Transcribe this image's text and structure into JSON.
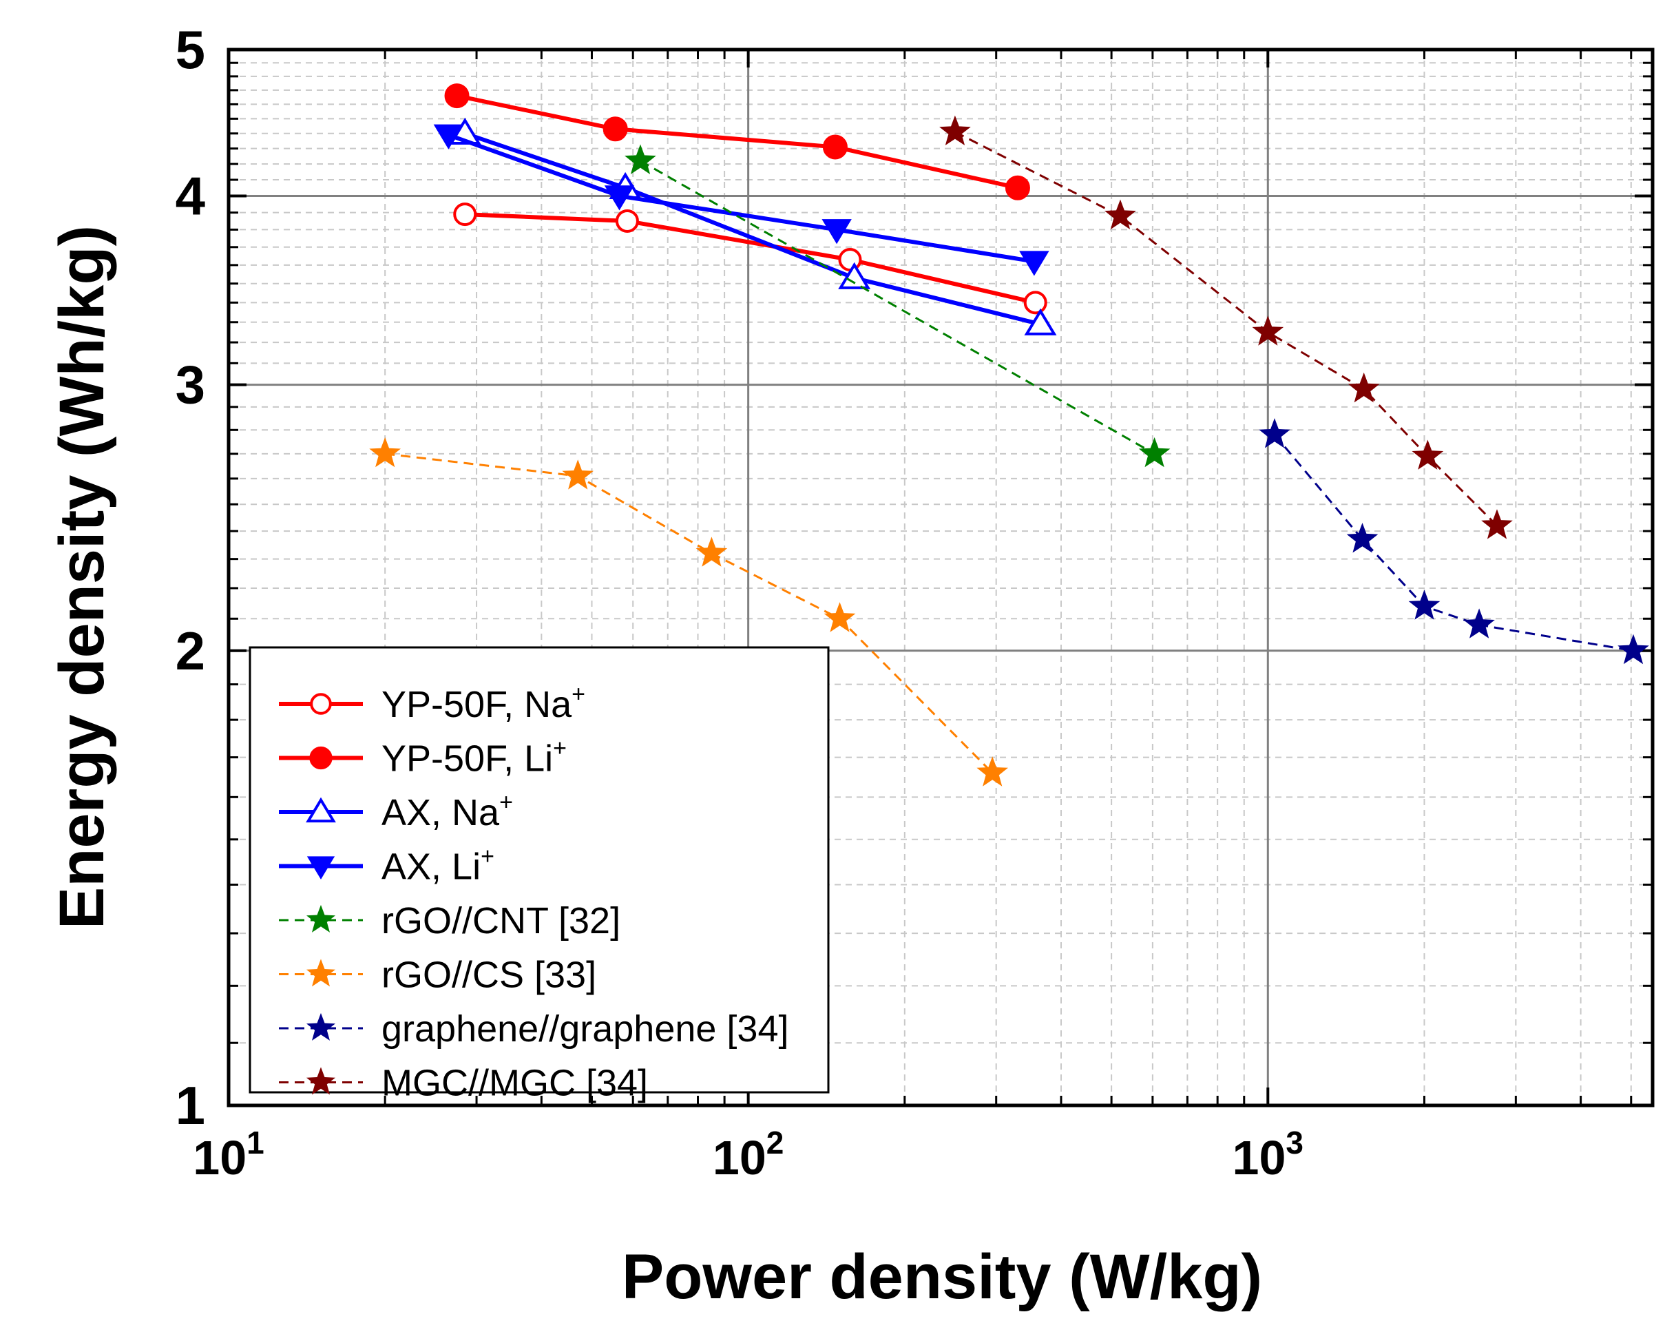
{
  "chart_data": {
    "type": "line",
    "title": "",
    "xlabel": "Power density (W/kg)",
    "ylabel": "Energy density (Wh/kg)",
    "xscale": "log",
    "yscale": "log",
    "xlim": [
      10,
      5500
    ],
    "ylim": [
      1,
      5
    ],
    "grid": true,
    "x_ticks": [
      {
        "base": "10",
        "exp": "1",
        "value": 10
      },
      {
        "base": "10",
        "exp": "2",
        "value": 100
      },
      {
        "base": "10",
        "exp": "3",
        "value": 1000
      }
    ],
    "y_ticks": [
      {
        "label": "1",
        "value": 1
      },
      {
        "label": "2",
        "value": 2
      },
      {
        "label": "3",
        "value": 3
      },
      {
        "label": "4",
        "value": 4
      },
      {
        "label": "5",
        "value": 5
      }
    ],
    "legend_position": "bottom-left",
    "series": [
      {
        "name": "YP-50F, Na",
        "sup": "+",
        "color": "#ff0000",
        "marker": "circle-open",
        "dash": "solid",
        "x": [
          28.5,
          58.5,
          157,
          357
        ],
        "y": [
          3.89,
          3.85,
          3.63,
          3.4
        ]
      },
      {
        "name": "YP-50F, Li",
        "sup": "+",
        "color": "#ff0000",
        "marker": "circle-filled",
        "dash": "solid",
        "x": [
          27.5,
          55.5,
          147,
          330
        ],
        "y": [
          4.66,
          4.43,
          4.31,
          4.05
        ]
      },
      {
        "name": "AX, Na",
        "sup": "+",
        "color": "#0000ff",
        "marker": "triangle-up-open",
        "dash": "solid",
        "x": [
          28.5,
          58,
          160,
          365
        ],
        "y": [
          4.4,
          4.05,
          3.53,
          3.29
        ]
      },
      {
        "name": "AX, Li",
        "sup": "+",
        "color": "#0000ff",
        "marker": "triangle-down-filled",
        "dash": "solid",
        "x": [
          26.5,
          56.5,
          148,
          355
        ],
        "y": [
          4.39,
          4.0,
          3.8,
          3.62
        ]
      },
      {
        "name": "rGO//CNT [32]",
        "sup": "",
        "color": "#008000",
        "marker": "star",
        "dash": "dashed",
        "x": [
          62,
          605
        ],
        "y": [
          4.22,
          2.7
        ]
      },
      {
        "name": "rGO//CS [33]",
        "sup": "",
        "color": "#ff8000",
        "marker": "star",
        "dash": "dashed",
        "x": [
          20,
          47,
          85,
          150,
          295
        ],
        "y": [
          2.7,
          2.61,
          2.32,
          2.1,
          1.66
        ]
      },
      {
        "name": "graphene//graphene [34]",
        "sup": "",
        "color": "#00008b",
        "marker": "star",
        "dash": "dashed",
        "x": [
          1030,
          1520,
          2000,
          2550,
          5050
        ],
        "y": [
          2.78,
          2.37,
          2.14,
          2.08,
          2.0
        ]
      },
      {
        "name": "MGC//MGC [34]",
        "sup": "",
        "color": "#7f0000",
        "marker": "star",
        "dash": "dashed",
        "x": [
          250,
          520,
          1000,
          1530,
          2030,
          2760
        ],
        "y": [
          4.41,
          3.88,
          3.25,
          2.98,
          2.69,
          2.42
        ]
      }
    ]
  }
}
